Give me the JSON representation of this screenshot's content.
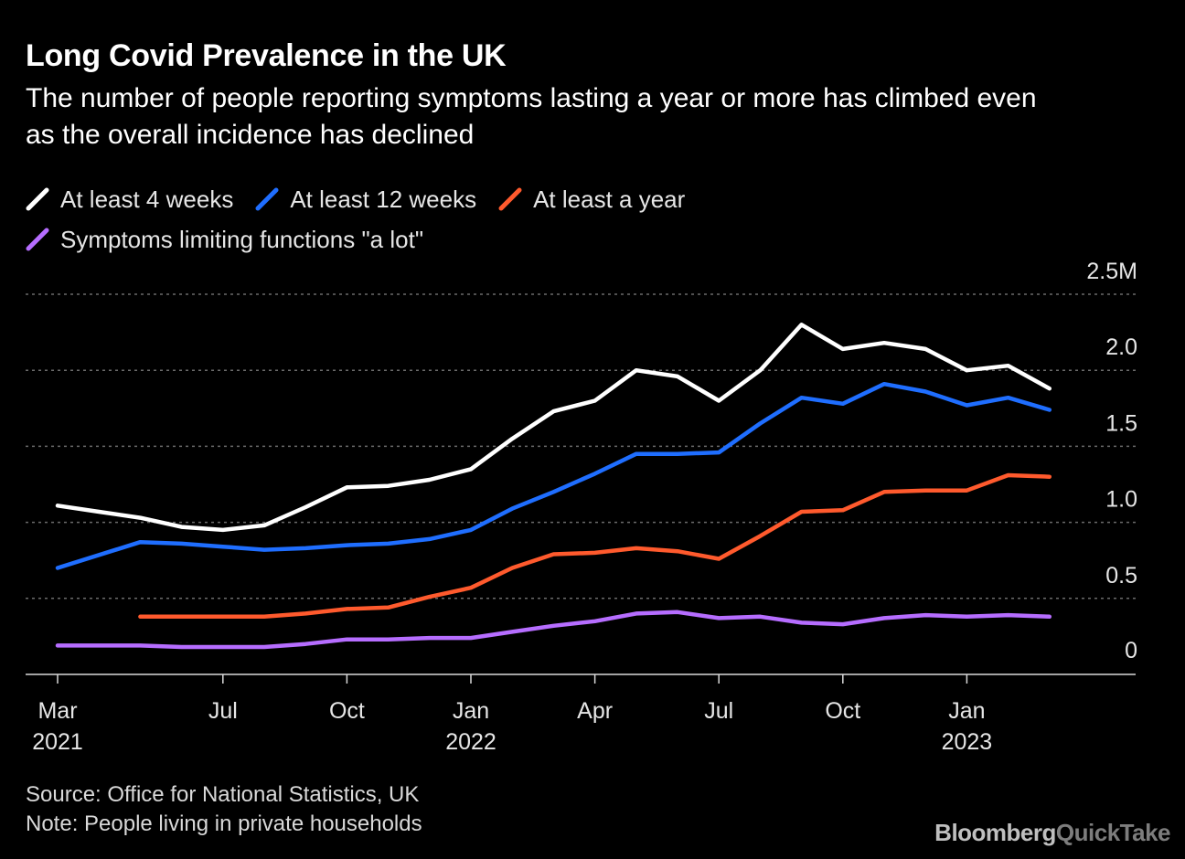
{
  "header": {
    "title": "Long Covid Prevalence in the UK",
    "subtitle": "The number of people reporting symptoms lasting a year or more has climbed even as the overall incidence has declined"
  },
  "footer": {
    "source": "Source: Office for National Statistics, UK",
    "note": "Note: People living in private households",
    "brand_main": "Bloomberg",
    "brand_accent": "QuickTake"
  },
  "chart_data": {
    "type": "line",
    "x": [
      "2021-03",
      "2021-04",
      "2021-05",
      "2021-06",
      "2021-07",
      "2021-08",
      "2021-09",
      "2021-10",
      "2021-11",
      "2021-12",
      "2022-01",
      "2022-02",
      "2022-03",
      "2022-04",
      "2022-05",
      "2022-06",
      "2022-07",
      "2022-08",
      "2022-09",
      "2022-10",
      "2022-11",
      "2022-12",
      "2023-01",
      "2023-02",
      "2023-03"
    ],
    "series": [
      {
        "name": "At least 4 weeks",
        "color": "#ffffff",
        "values": [
          1.11,
          1.07,
          1.03,
          0.97,
          0.95,
          0.98,
          1.1,
          1.23,
          1.24,
          1.28,
          1.35,
          1.55,
          1.73,
          1.8,
          2.0,
          1.96,
          1.8,
          2.0,
          2.3,
          2.14,
          2.18,
          2.14,
          2.0,
          2.03,
          1.88
        ]
      },
      {
        "name": "At least 12 weeks",
        "color": "#1f6eff",
        "values": [
          0.7,
          null,
          0.87,
          0.86,
          0.84,
          0.82,
          0.83,
          0.85,
          0.86,
          0.89,
          0.95,
          1.09,
          1.2,
          1.32,
          1.45,
          1.45,
          1.46,
          1.65,
          1.82,
          1.78,
          1.91,
          1.86,
          1.77,
          1.82,
          1.74
        ]
      },
      {
        "name": "At least a year",
        "color": "#ff5a2d",
        "values": [
          null,
          null,
          0.38,
          0.38,
          0.38,
          0.38,
          0.4,
          0.43,
          0.44,
          0.51,
          0.57,
          0.7,
          0.79,
          0.8,
          0.83,
          0.81,
          0.76,
          0.91,
          1.07,
          1.08,
          1.2,
          1.21,
          1.21,
          1.31,
          1.3
        ]
      },
      {
        "name": "Symptoms limiting functions \"a lot\"",
        "color": "#b66dff",
        "values": [
          0.19,
          null,
          0.19,
          0.18,
          0.18,
          0.18,
          0.2,
          0.23,
          0.23,
          0.24,
          0.24,
          0.28,
          0.32,
          0.35,
          0.4,
          0.41,
          0.37,
          0.38,
          0.34,
          0.33,
          0.37,
          0.39,
          0.38,
          0.39,
          0.38
        ]
      }
    ],
    "y_ticks": [
      {
        "value": 0,
        "label": "0"
      },
      {
        "value": 0.5,
        "label": "0.5"
      },
      {
        "value": 1.0,
        "label": "1.0"
      },
      {
        "value": 1.5,
        "label": "1.5"
      },
      {
        "value": 2.0,
        "label": "2.0"
      },
      {
        "value": 2.5,
        "label": "2.5M"
      }
    ],
    "x_ticks": [
      {
        "month": "2021-03",
        "label": "Mar",
        "year": "2021"
      },
      {
        "month": "2021-07",
        "label": "Jul",
        "year": ""
      },
      {
        "month": "2021-10",
        "label": "Oct",
        "year": ""
      },
      {
        "month": "2022-01",
        "label": "Jan",
        "year": "2022"
      },
      {
        "month": "2022-04",
        "label": "Apr",
        "year": ""
      },
      {
        "month": "2022-07",
        "label": "Jul",
        "year": ""
      },
      {
        "month": "2022-10",
        "label": "Oct",
        "year": ""
      },
      {
        "month": "2023-01",
        "label": "Jan",
        "year": "2023"
      }
    ],
    "ylim": [
      0,
      2.5
    ],
    "grid": true,
    "legend_position": "top-left"
  }
}
